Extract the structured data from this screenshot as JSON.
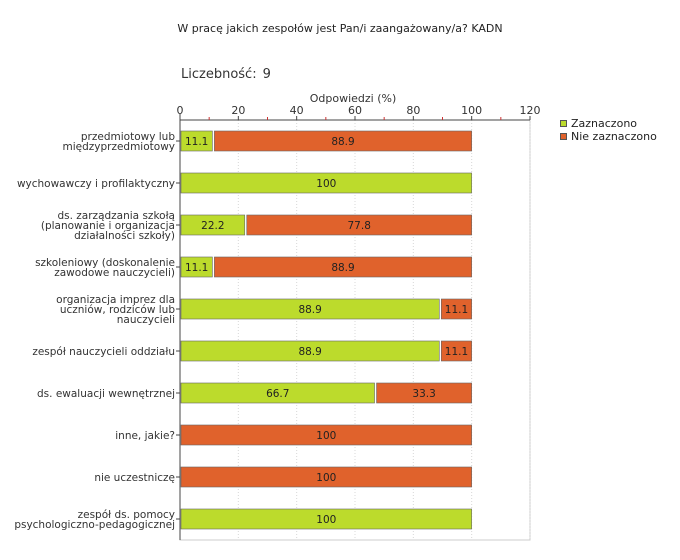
{
  "title": "W pracę jakich zespołów jest Pan/i zaangażowany/a? KADN",
  "count_label": "Liczebność:",
  "count_value": "9",
  "chart_data": {
    "type": "bar",
    "orientation": "horizontal",
    "stacked": true,
    "xlabel": "Odpowiedzi (%)",
    "xlim": [
      0,
      120
    ],
    "xticks": [
      0,
      20,
      40,
      60,
      80,
      100,
      120
    ],
    "grid": true,
    "legend_position": "right",
    "categories": [
      "przedmiotowy lub\nmiędzyprzedmiotowy",
      "wychowawczy i profilaktyczny",
      "ds. zarządzania szkołą\n(planowanie i organizacja\ndziałalności szkoły)",
      "szkoleniowy (doskonalenie\nzawodowe nauczycieli)",
      "organizacja imprez dla\nuczniów, rodziców lub\nnauczycieli",
      "zespół nauczycieli oddziału",
      "ds. ewaluacji wewnętrznej",
      "inne, jakie?",
      "nie uczestniczę",
      "zespół ds. pomocy\npsychologiczno-pedagogicznej"
    ],
    "series": [
      {
        "name": "Zaznaczono",
        "color": "#bcdb2c",
        "values": [
          11.1,
          100,
          22.2,
          11.1,
          88.9,
          88.9,
          66.7,
          0,
          0,
          100
        ],
        "labels": [
          "11.1",
          "100",
          "22.2",
          "11.1",
          "88.9",
          "88.9",
          "66.7",
          "",
          "",
          "100"
        ]
      },
      {
        "name": "Nie zaznaczono",
        "color": "#e0622c",
        "values": [
          88.9,
          0,
          77.8,
          88.9,
          11.1,
          11.1,
          33.3,
          100,
          100,
          0
        ],
        "labels": [
          "88.9",
          "",
          "77.8",
          "88.9",
          "11.1",
          "11.1",
          "33.3",
          "100",
          "100",
          ""
        ]
      }
    ]
  }
}
